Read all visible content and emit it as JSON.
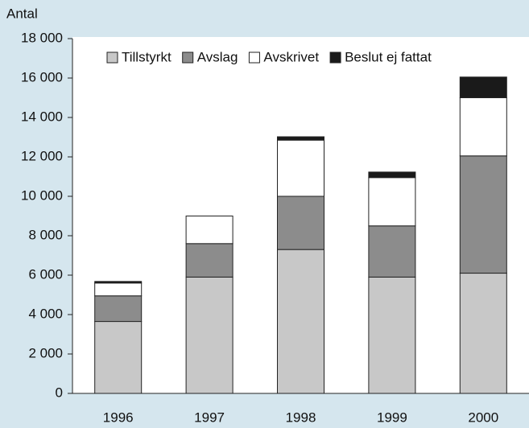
{
  "chart_data": {
    "type": "bar",
    "stacked": true,
    "y_label": "Antal",
    "categories": [
      "1996",
      "1997",
      "1998",
      "1999",
      "2000"
    ],
    "series": [
      {
        "name": "Tillstyrkt",
        "color": "#c8c8c8",
        "values": [
          3650,
          5900,
          7300,
          5900,
          6100
        ]
      },
      {
        "name": "Avslag",
        "color": "#8c8c8c",
        "values": [
          1300,
          1700,
          2700,
          2600,
          5950
        ]
      },
      {
        "name": "Avskrivet",
        "color": "#ffffff",
        "values": [
          650,
          1400,
          2850,
          2450,
          2950
        ]
      },
      {
        "name": "Beslut ej fattat",
        "color": "#1a1a1a",
        "values": [
          80,
          0,
          170,
          280,
          1050
        ]
      }
    ],
    "ylim": [
      0,
      18000
    ],
    "yticks": [
      0,
      {
        "value": 2000,
        "label": "2 000"
      },
      {
        "value": 4000,
        "label": "4 000"
      },
      {
        "value": 6000,
        "label": "6 000"
      },
      {
        "value": 8000,
        "label": "8 000"
      },
      {
        "value": 10000,
        "label": "10 000"
      },
      {
        "value": 12000,
        "label": "12 000"
      },
      {
        "value": 14000,
        "label": "14 000"
      },
      {
        "value": 16000,
        "label": "16 000"
      },
      {
        "value": 18000,
        "label": "18 000"
      }
    ],
    "legend": "top"
  }
}
